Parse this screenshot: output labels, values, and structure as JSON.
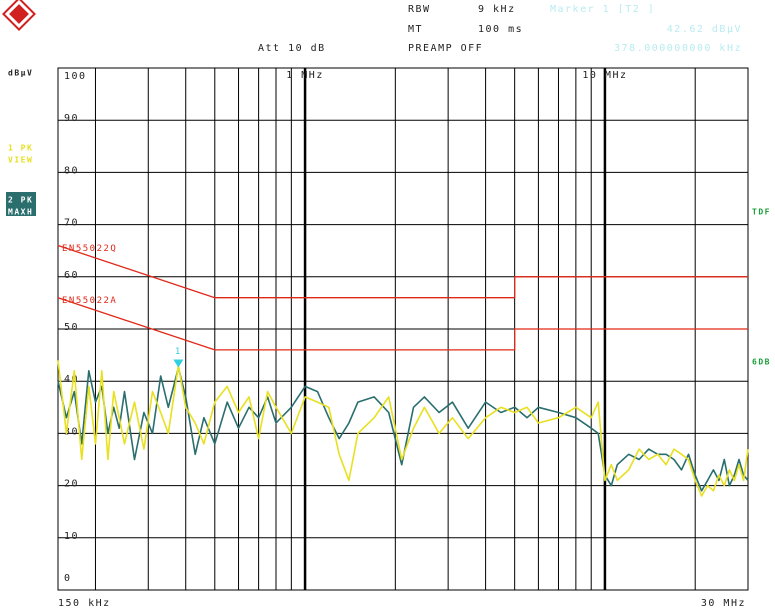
{
  "header": {
    "rbw_label": "RBW",
    "rbw": "9 kHz",
    "marker": "Marker 1 [T2 ]",
    "mt_label": "MT",
    "mt": "100 ms",
    "marker_level": "42.62 dBµV",
    "att": "Att 10 dB",
    "preamp": "PREAMP OFF",
    "marker_freq": "378.000000000 kHz"
  },
  "chart_data": {
    "type": "line",
    "ylabel": "dBµV",
    "xscale": "log",
    "xlim": [
      0.15,
      30
    ],
    "x_start_label": "150 kHz",
    "x_stop_label": "30 MHz",
    "xticks": [
      {
        "value": 1,
        "label": "1 MHz"
      },
      {
        "value": 10,
        "label": "10 MHz"
      }
    ],
    "xgrid": [
      0.2,
      0.3,
      0.4,
      0.5,
      0.6,
      0.7,
      0.8,
      0.9,
      2,
      3,
      4,
      5,
      6,
      7,
      8,
      9,
      20
    ],
    "ylim": [
      0,
      100
    ],
    "yticks": [
      0,
      10,
      20,
      30,
      40,
      50,
      60,
      70,
      80,
      90,
      100
    ],
    "grid": true,
    "annotations": [
      "TDF",
      "6DB"
    ],
    "x": [
      0.15,
      0.16,
      0.17,
      0.18,
      0.19,
      0.2,
      0.21,
      0.22,
      0.23,
      0.24,
      0.25,
      0.27,
      0.29,
      0.31,
      0.33,
      0.35,
      0.378,
      0.4,
      0.43,
      0.46,
      0.5,
      0.55,
      0.6,
      0.65,
      0.7,
      0.75,
      0.8,
      0.9,
      1.0,
      1.1,
      1.2,
      1.3,
      1.4,
      1.5,
      1.7,
      1.9,
      2.1,
      2.3,
      2.5,
      2.8,
      3.1,
      3.5,
      4,
      4.5,
      5,
      5.5,
      6,
      7,
      8,
      9,
      9.5,
      10,
      10.5,
      11,
      12,
      13,
      14,
      15,
      16,
      17,
      18,
      19,
      20,
      21,
      22,
      23,
      24,
      25,
      26,
      27,
      28,
      29,
      30
    ],
    "series": [
      {
        "name": "2 PK",
        "mode": "MAXH",
        "color": "#2a6e6e",
        "values": [
          40,
          33,
          38,
          28,
          42,
          36,
          39,
          30,
          35,
          31,
          38,
          25,
          34,
          30,
          41,
          35,
          42.6,
          37,
          26,
          33,
          28,
          36,
          31,
          35,
          33,
          37,
          32,
          35,
          39,
          38,
          33,
          29,
          32,
          36,
          37,
          34,
          24,
          35,
          37,
          34,
          36,
          31,
          36,
          34,
          35,
          33,
          35,
          34,
          33,
          31,
          30,
          22,
          20,
          24,
          26,
          25,
          27,
          26,
          26,
          25,
          23,
          26,
          22,
          19,
          21,
          23,
          21,
          25,
          20,
          22,
          25,
          22,
          21
        ]
      },
      {
        "name": "1 PK",
        "mode": "VIEW",
        "color": "#e8e020",
        "values": [
          44,
          30,
          42,
          25,
          39,
          28,
          42,
          25,
          38,
          33,
          28,
          36,
          27,
          38,
          34,
          30,
          43,
          35,
          32,
          28,
          36,
          39,
          34,
          37,
          29,
          38,
          35,
          30,
          37,
          36,
          35,
          26,
          21,
          30,
          33,
          37,
          25,
          31,
          35,
          30,
          33,
          29,
          33,
          35,
          34,
          35,
          32,
          33,
          35,
          33,
          36,
          21,
          24,
          21,
          23,
          27,
          25,
          26,
          24,
          27,
          26,
          25,
          21,
          18,
          20,
          19,
          22,
          20,
          23,
          21,
          24,
          21,
          27
        ]
      }
    ],
    "limit_lines": [
      {
        "name": "EN55022Q",
        "color": "#e02818",
        "x": [
          0.15,
          0.5,
          5,
          5,
          30
        ],
        "values": [
          66,
          56,
          56,
          60,
          60
        ]
      },
      {
        "name": "EN55022A",
        "color": "#e02818",
        "x": [
          0.15,
          0.5,
          5,
          5,
          30
        ],
        "values": [
          56,
          46,
          46,
          50,
          50
        ]
      }
    ],
    "marker": {
      "label": "1",
      "x": 0.378,
      "value": 42.62,
      "color": "#30d0e0"
    }
  }
}
